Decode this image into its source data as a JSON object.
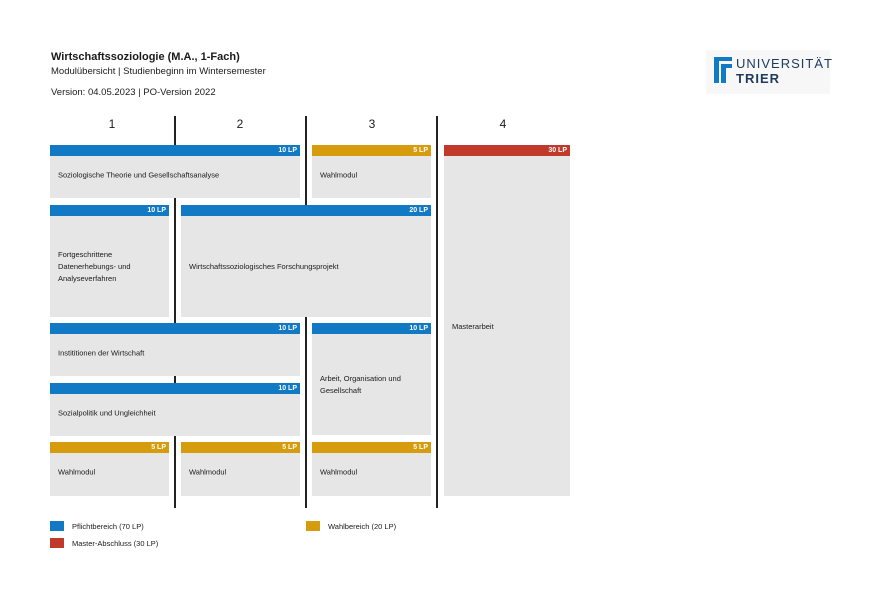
{
  "header": {
    "title": "Wirtschaftssoziologie (M.A., 1-Fach)",
    "subtitle": "Modulübersicht  |  Studienbeginn im Wintersemester",
    "version": "Version: 04.05.2023 |  PO-Version 2022"
  },
  "logo": {
    "line1": "UNIVERSITÄT",
    "line2": "TRIER"
  },
  "columns": [
    "1",
    "2",
    "3",
    "4"
  ],
  "colors": {
    "pflicht": "#1279c5",
    "wahl": "#d79c0e",
    "abschluss": "#c0392b",
    "module_bg": "#e6e6e6"
  },
  "modules": [
    {
      "name": "Soziologische Theorie und Gesellschaftsanalyse",
      "lp": "10 LP",
      "kind": "pflicht"
    },
    {
      "name": "Wahlmodul",
      "lp": "5 LP",
      "kind": "wahl"
    },
    {
      "name": "Masterarbeit",
      "lp": "30 LP",
      "kind": "abschluss"
    },
    {
      "name": "Fortgeschrittene Datenerhebungs- und Analyseverfahren",
      "lp": "10 LP",
      "kind": "pflicht"
    },
    {
      "name": "Wirtschaftssoziologisches Forschungsprojekt",
      "lp": "20 LP",
      "kind": "pflicht"
    },
    {
      "name": "Instititionen der Wirtschaft",
      "lp": "10 LP",
      "kind": "pflicht"
    },
    {
      "name": "Arbeit, Organisation und Gesellschaft",
      "lp": "10 LP",
      "kind": "pflicht"
    },
    {
      "name": "Sozialpolitik und Ungleichheit",
      "lp": "10 LP",
      "kind": "pflicht"
    },
    {
      "name": "Wahlmodul",
      "lp": "5 LP",
      "kind": "wahl"
    },
    {
      "name": "Wahlmodul",
      "lp": "5 LP",
      "kind": "wahl"
    },
    {
      "name": "Wahlmodul",
      "lp": "5 LP",
      "kind": "wahl"
    }
  ],
  "legend": {
    "pflicht": "Pflichtbereich (70 LP)",
    "wahl": "Wahlbereich (20 LP)",
    "abschluss": "Master-Abschluss (30 LP)"
  }
}
